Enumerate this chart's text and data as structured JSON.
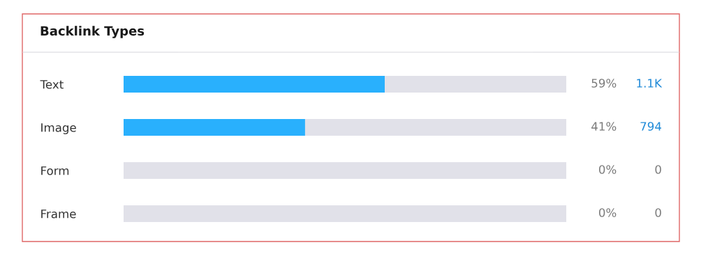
{
  "chart_data": {
    "type": "bar",
    "orientation": "horizontal",
    "stacked": true,
    "title": "Backlink Types",
    "categories": [
      "Text",
      "Image",
      "Form",
      "Frame"
    ],
    "xlim": [
      0,
      100
    ],
    "tick_labels": "y",
    "legend": false,
    "series": [
      {
        "color": "#29b0fd",
        "values": [
          59,
          41,
          0,
          0
        ],
        "value_labels": [
          "59%",
          "41%",
          "0%",
          "0%"
        ]
      },
      {
        "color": "#e1e1e9",
        "values": [
          41,
          59,
          100,
          100
        ]
      }
    ],
    "annotations": [
      "1.1K",
      "794",
      "0",
      "0"
    ]
  }
}
